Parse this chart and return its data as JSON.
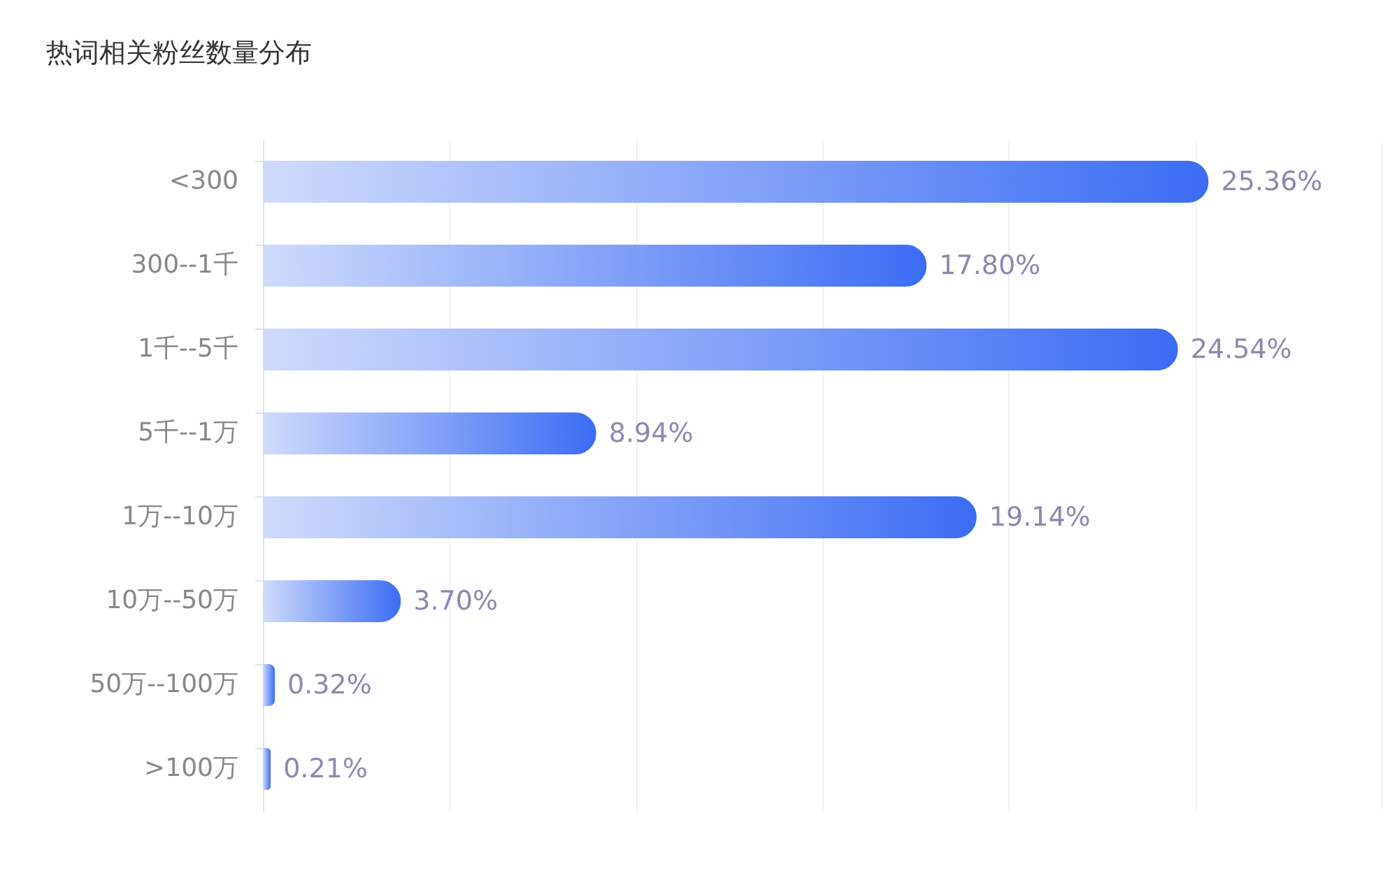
{
  "chart_data": {
    "type": "bar",
    "orientation": "horizontal",
    "title": "热词相关粉丝数量分布",
    "categories": [
      "<300",
      "300--1千",
      "1千--5千",
      "5千--1万",
      "1万--10万",
      "10万--50万",
      "50万--100万",
      ">100万"
    ],
    "values": [
      25.36,
      17.8,
      24.54,
      8.94,
      19.14,
      3.7,
      0.32,
      0.21
    ],
    "value_labels": [
      "25.36%",
      "17.80%",
      "24.54%",
      "8.94%",
      "19.14%",
      "3.70%",
      "0.32%",
      "0.21%"
    ],
    "color": "#3b6cf4",
    "xlim": [
      0,
      30
    ],
    "xticks": [
      {
        "value": 0,
        "label": null
      },
      {
        "value": 5,
        "label": null
      },
      {
        "value": 10,
        "label": null
      },
      {
        "value": 15,
        "label": null
      },
      {
        "value": 20,
        "label": null
      },
      {
        "value": 25,
        "label": null
      },
      {
        "value": 30,
        "label": null
      }
    ],
    "grid": "x",
    "tick_labels": "y"
  }
}
